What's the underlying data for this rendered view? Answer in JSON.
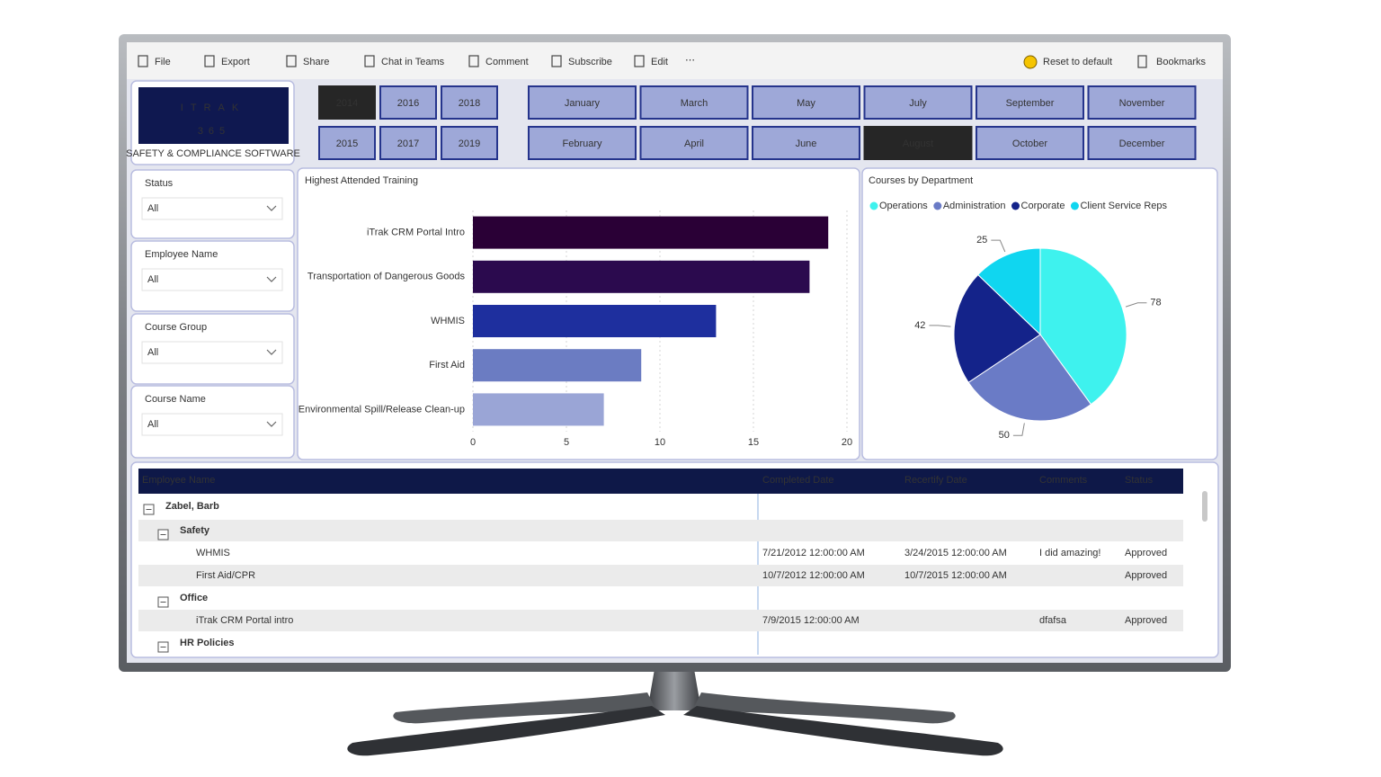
{
  "toolbar": {
    "left": [
      "File",
      "Export",
      "Share",
      "Chat in Teams",
      "Comment",
      "Subscribe",
      "Edit"
    ],
    "right": [
      "Reset to default",
      "Bookmarks"
    ]
  },
  "logo": {
    "title": "ITRAK",
    "subtitle": "365",
    "tagline": "SAFETY & COMPLIANCE SOFTWARE"
  },
  "years": [
    "2014",
    "2015",
    "2016",
    "2017",
    "2018",
    "2019"
  ],
  "selected_year": "2014",
  "months": [
    "January",
    "February",
    "March",
    "April",
    "May",
    "June",
    "July",
    "August",
    "September",
    "October",
    "November",
    "December"
  ],
  "selected_month": "August",
  "filters": [
    {
      "label": "Status",
      "value": "All"
    },
    {
      "label": "Employee Name",
      "value": "All"
    },
    {
      "label": "Course Group",
      "value": "All"
    },
    {
      "label": "Course Name",
      "value": "All"
    }
  ],
  "chart_data": [
    {
      "type": "bar",
      "orientation": "horizontal",
      "title": "Highest Attended Training",
      "categories": [
        "iTrak CRM Portal Intro",
        "Transportation of Dangerous Goods",
        "WHMIS",
        "First Aid",
        "Environmental Spill/Release Clean-up"
      ],
      "values": [
        19,
        18,
        13,
        9,
        7
      ],
      "colors": [
        "#2a0036",
        "#2b0a4e",
        "#1e2f9e",
        "#6b7cc2",
        "#9aa5d6"
      ],
      "xlim": [
        0,
        20
      ],
      "xticks": [
        0,
        5,
        10,
        15,
        20
      ],
      "grid": true
    },
    {
      "type": "pie",
      "title": "Courses by Department",
      "categories": [
        "Operations",
        "Administration",
        "Corporate",
        "Client Service Reps"
      ],
      "values": [
        78,
        50,
        42,
        25
      ],
      "colors": [
        "#3ef2ee",
        "#6a7bc6",
        "#14238a",
        "#10d6f0"
      ]
    }
  ],
  "table": {
    "headers": [
      "Employee Name",
      "Completed Date",
      "Recertify Date",
      "Comments",
      "Status"
    ],
    "groups": [
      {
        "name": "Zabel, Barb",
        "groups": [
          {
            "name": "Safety",
            "rows": [
              [
                "WHMIS",
                "7/21/2012 12:00:00 AM",
                "3/24/2015 12:00:00 AM",
                "I did amazing!",
                "Approved"
              ],
              [
                "First Aid/CPR",
                "10/7/2012 12:00:00 AM",
                "10/7/2015 12:00:00 AM",
                null,
                "Approved"
              ]
            ]
          },
          {
            "name": "Office",
            "rows": [
              [
                "iTrak CRM Portal intro",
                "7/9/2015 12:00:00 AM",
                null,
                "dfafsa",
                "Approved"
              ]
            ]
          },
          {
            "name": "HR Policies",
            "rows": []
          }
        ]
      }
    ]
  }
}
